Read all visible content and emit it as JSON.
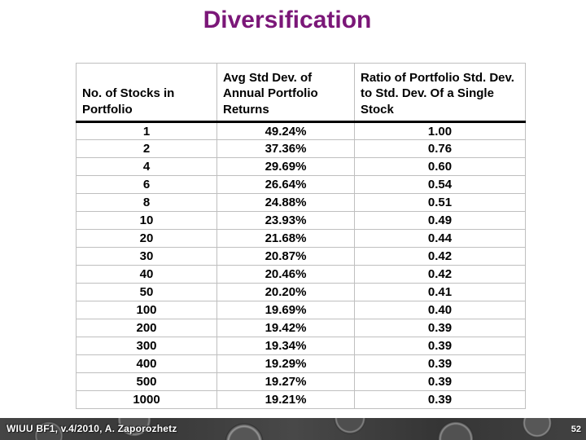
{
  "slide": {
    "title": "Diversification",
    "title_color": "#7B1778"
  },
  "chart_data": {
    "type": "table",
    "title": "Diversification",
    "columns": [
      "No. of Stocks in Portfolio",
      "Avg Std Dev. of Annual Portfolio Returns",
      "Ratio of Portfolio Std. Dev. to Std. Dev. Of a Single Stock"
    ],
    "rows": [
      [
        "1",
        "49.24%",
        "1.00"
      ],
      [
        "2",
        "37.36%",
        "0.76"
      ],
      [
        "4",
        "29.69%",
        "0.60"
      ],
      [
        "6",
        "26.64%",
        "0.54"
      ],
      [
        "8",
        "24.88%",
        "0.51"
      ],
      [
        "10",
        "23.93%",
        "0.49"
      ],
      [
        "20",
        "21.68%",
        "0.44"
      ],
      [
        "30",
        "20.87%",
        "0.42"
      ],
      [
        "40",
        "20.46%",
        "0.42"
      ],
      [
        "50",
        "20.20%",
        "0.41"
      ],
      [
        "100",
        "19.69%",
        "0.40"
      ],
      [
        "200",
        "19.42%",
        "0.39"
      ],
      [
        "300",
        "19.34%",
        "0.39"
      ],
      [
        "400",
        "19.29%",
        "0.39"
      ],
      [
        "500",
        "19.27%",
        "0.39"
      ],
      [
        "1000",
        "19.21%",
        "0.39"
      ]
    ],
    "stocks_in_portfolio": [
      1,
      2,
      4,
      6,
      8,
      10,
      20,
      30,
      40,
      50,
      100,
      200,
      300,
      400,
      500,
      1000
    ],
    "avg_std_dev_pct": [
      49.24,
      37.36,
      29.69,
      26.64,
      24.88,
      23.93,
      21.68,
      20.87,
      20.46,
      20.2,
      19.69,
      19.42,
      19.34,
      19.29,
      19.27,
      19.21
    ],
    "ratio_to_single_stock": [
      1.0,
      0.76,
      0.6,
      0.54,
      0.51,
      0.49,
      0.44,
      0.42,
      0.42,
      0.41,
      0.4,
      0.39,
      0.39,
      0.39,
      0.39,
      0.39
    ]
  },
  "footer": {
    "credit": "WIUU BF1, v.4/2010, A. Zaporozhetz",
    "slide_number": "52"
  }
}
